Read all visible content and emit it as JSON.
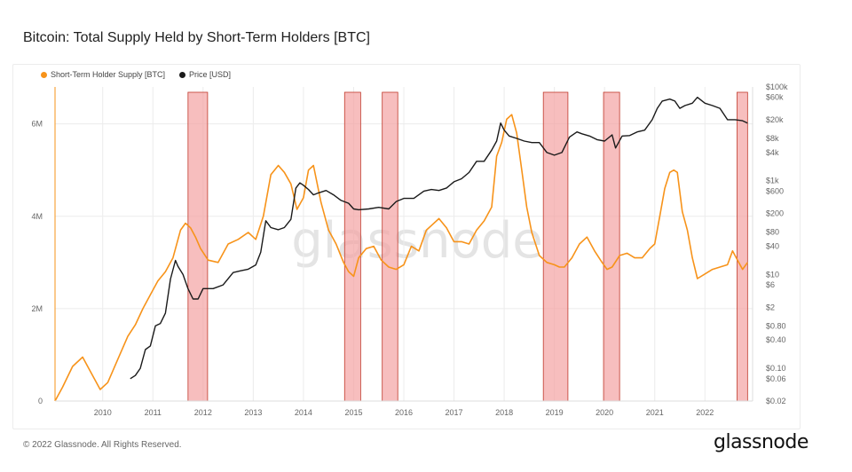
{
  "title": "Bitcoin: Total Supply Held by Short-Term Holders [BTC]",
  "footer": "© 2022 Glassnode. All Rights Reserved.",
  "brand": "glassnode",
  "watermark": "glassnode",
  "colors": {
    "sth_supply": "#f7931a",
    "price": "#1a1a1a",
    "band": "#f4a3a3",
    "band_stroke": "#c0392b",
    "grid": "#ececec"
  },
  "legend": [
    {
      "label": "Short-Term Holder Supply [BTC]",
      "color": "#f7931a"
    },
    {
      "label": "Price [USD]",
      "color": "#1a1a1a"
    }
  ],
  "chart_data": {
    "type": "line",
    "title": "Bitcoin: Total Supply Held by Short-Term Holders [BTC]",
    "x_range": [
      2009.05,
      2022.95
    ],
    "x_ticks": [
      "2010",
      "2011",
      "2012",
      "2013",
      "2014",
      "2015",
      "2016",
      "2017",
      "2018",
      "2019",
      "2020",
      "2021",
      "2022"
    ],
    "y_left": {
      "scale": "linear",
      "range": [
        0,
        6800000
      ],
      "ticks": [
        0,
        2000000,
        4000000,
        6000000
      ],
      "tick_labels": [
        "0",
        "2M",
        "4M",
        "6M"
      ]
    },
    "y_right": {
      "scale": "log",
      "range": [
        0.02,
        100000
      ],
      "ticks": [
        100000,
        60000,
        20000,
        8000,
        4000,
        1000,
        600,
        200,
        80,
        40,
        10,
        6,
        2,
        0.8,
        0.4,
        0.1,
        0.06,
        0.02
      ],
      "tick_labels": [
        "$100k",
        "$60k",
        "$20k",
        "$8k",
        "$4k",
        "$1k",
        "$600",
        "$200",
        "$80",
        "$40",
        "$10",
        "$6",
        "$2",
        "$0.80",
        "$0.40",
        "$0.10",
        "$0.06",
        "$0.02"
      ]
    },
    "shaded_periods": [
      [
        2011.7,
        2012.09
      ],
      [
        2014.82,
        2015.14
      ],
      [
        2015.57,
        2015.88
      ],
      [
        2018.78,
        2019.27
      ],
      [
        2019.98,
        2020.3
      ],
      [
        2022.64,
        2022.85
      ]
    ],
    "series": [
      {
        "name": "Short-Term Holder Supply [BTC]",
        "axis": "left",
        "x": [
          2009.05,
          2009.2,
          2009.4,
          2009.6,
          2009.8,
          2009.95,
          2010.1,
          2010.3,
          2010.5,
          2010.65,
          2010.8,
          2010.95,
          2011.1,
          2011.25,
          2011.4,
          2011.55,
          2011.65,
          2011.75,
          2011.85,
          2011.95,
          2012.1,
          2012.3,
          2012.5,
          2012.7,
          2012.9,
          2013.05,
          2013.2,
          2013.35,
          2013.5,
          2013.62,
          2013.75,
          2013.87,
          2014.0,
          2014.1,
          2014.2,
          2014.35,
          2014.5,
          2014.65,
          2014.8,
          2014.9,
          2015.0,
          2015.1,
          2015.25,
          2015.4,
          2015.55,
          2015.7,
          2015.85,
          2016.0,
          2016.15,
          2016.3,
          2016.45,
          2016.55,
          2016.7,
          2016.85,
          2017.0,
          2017.15,
          2017.3,
          2017.45,
          2017.6,
          2017.75,
          2017.85,
          2017.95,
          2018.05,
          2018.15,
          2018.25,
          2018.35,
          2018.45,
          2018.55,
          2018.7,
          2018.85,
          2019.0,
          2019.1,
          2019.2,
          2019.35,
          2019.5,
          2019.65,
          2019.8,
          2019.95,
          2020.05,
          2020.15,
          2020.3,
          2020.45,
          2020.6,
          2020.75,
          2020.9,
          2021.0,
          2021.1,
          2021.2,
          2021.3,
          2021.38,
          2021.45,
          2021.55,
          2021.65,
          2021.75,
          2021.85,
          2022.0,
          2022.15,
          2022.3,
          2022.45,
          2022.55,
          2022.65,
          2022.75,
          2022.85
        ],
        "values": [
          0,
          300000,
          750000,
          950000,
          550000,
          250000,
          400000,
          900000,
          1400000,
          1650000,
          2000000,
          2300000,
          2600000,
          2800000,
          3100000,
          3700000,
          3850000,
          3750000,
          3550000,
          3300000,
          3050000,
          3000000,
          3400000,
          3500000,
          3650000,
          3500000,
          4000000,
          4900000,
          5100000,
          4950000,
          4700000,
          4150000,
          4400000,
          5000000,
          5100000,
          4300000,
          3700000,
          3400000,
          3000000,
          2800000,
          2700000,
          3100000,
          3300000,
          3350000,
          3050000,
          2900000,
          2850000,
          2950000,
          3350000,
          3250000,
          3700000,
          3800000,
          3950000,
          3750000,
          3450000,
          3450000,
          3400000,
          3700000,
          3900000,
          4200000,
          5300000,
          5600000,
          6100000,
          6200000,
          5800000,
          5000000,
          4200000,
          3650000,
          3150000,
          3000000,
          2950000,
          2900000,
          2900000,
          3100000,
          3400000,
          3550000,
          3250000,
          3000000,
          2850000,
          2900000,
          3150000,
          3200000,
          3100000,
          3100000,
          3300000,
          3400000,
          4000000,
          4600000,
          4950000,
          5000000,
          4950000,
          4100000,
          3700000,
          3100000,
          2650000,
          2750000,
          2850000,
          2900000,
          2950000,
          3250000,
          3050000,
          2850000,
          3000000
        ]
      },
      {
        "name": "Price [USD]",
        "axis": "right",
        "x": [
          2010.55,
          2010.65,
          2010.75,
          2010.85,
          2010.95,
          2011.05,
          2011.15,
          2011.25,
          2011.35,
          2011.45,
          2011.5,
          2011.6,
          2011.7,
          2011.8,
          2011.9,
          2012.0,
          2012.2,
          2012.4,
          2012.6,
          2012.75,
          2012.9,
          2013.05,
          2013.15,
          2013.25,
          2013.35,
          2013.5,
          2013.62,
          2013.75,
          2013.85,
          2013.93,
          2014.0,
          2014.1,
          2014.2,
          2014.3,
          2014.45,
          2014.6,
          2014.75,
          2014.9,
          2015.0,
          2015.1,
          2015.3,
          2015.5,
          2015.7,
          2015.85,
          2016.0,
          2016.2,
          2016.4,
          2016.55,
          2016.7,
          2016.85,
          2017.0,
          2017.15,
          2017.3,
          2017.45,
          2017.6,
          2017.75,
          2017.85,
          2017.93,
          2018.0,
          2018.1,
          2018.25,
          2018.4,
          2018.55,
          2018.7,
          2018.85,
          2019.0,
          2019.15,
          2019.3,
          2019.45,
          2019.55,
          2019.7,
          2019.85,
          2020.0,
          2020.15,
          2020.22,
          2020.35,
          2020.5,
          2020.65,
          2020.8,
          2020.95,
          2021.05,
          2021.15,
          2021.3,
          2021.4,
          2021.5,
          2021.6,
          2021.75,
          2021.85,
          2022.0,
          2022.15,
          2022.3,
          2022.45,
          2022.6,
          2022.75,
          2022.85
        ],
        "values": [
          0.06,
          0.07,
          0.1,
          0.25,
          0.3,
          0.8,
          0.9,
          1.5,
          8,
          20,
          15,
          10,
          5,
          3,
          3,
          5,
          5,
          6,
          11,
          12,
          13,
          16,
          30,
          140,
          100,
          90,
          100,
          150,
          700,
          900,
          800,
          650,
          500,
          550,
          620,
          500,
          380,
          330,
          250,
          240,
          250,
          270,
          250,
          360,
          420,
          420,
          600,
          650,
          620,
          700,
          950,
          1100,
          1500,
          2600,
          2600,
          4500,
          7000,
          17000,
          12000,
          9000,
          8000,
          7000,
          6500,
          6500,
          4000,
          3500,
          4000,
          8500,
          11000,
          10000,
          9000,
          7500,
          7000,
          9500,
          5000,
          9000,
          9200,
          11000,
          12000,
          20000,
          35000,
          50000,
          55000,
          50000,
          35000,
          40000,
          45000,
          60000,
          45000,
          40000,
          35000,
          20000,
          20000,
          19000,
          17000
        ]
      }
    ]
  }
}
